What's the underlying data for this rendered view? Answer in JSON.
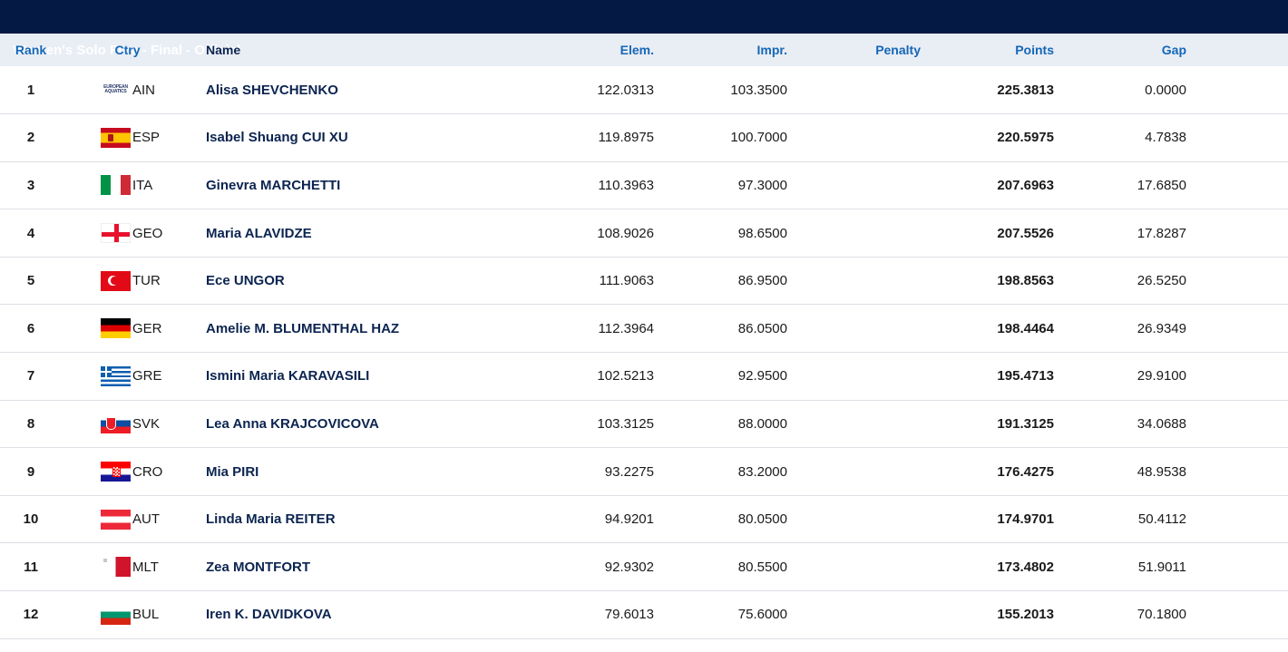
{
  "title": {
    "event": "Women's Solo Free - Final",
    "separator": " - ",
    "status": "Official"
  },
  "columns": {
    "rank": "Rank",
    "ctry": "Ctry",
    "name": "Name",
    "elem": "Elem.",
    "impr": "Impr.",
    "penalty": "Penalty",
    "points": "Points",
    "gap": "Gap"
  },
  "rows": [
    {
      "rank": "1",
      "ctry": "AIN",
      "flag": "ain",
      "flag_text": "EUROPEAN AQUATICS",
      "name": "Alisa SHEVCHENKO",
      "elem": "122.0313",
      "impr": "103.3500",
      "penalty": "",
      "points": "225.3813",
      "gap": "0.0000"
    },
    {
      "rank": "2",
      "ctry": "ESP",
      "flag": "esp",
      "name": "Isabel Shuang CUI XU",
      "elem": "119.8975",
      "impr": "100.7000",
      "penalty": "",
      "points": "220.5975",
      "gap": "4.7838"
    },
    {
      "rank": "3",
      "ctry": "ITA",
      "flag": "ita",
      "name": "Ginevra MARCHETTI",
      "elem": "110.3963",
      "impr": "97.3000",
      "penalty": "",
      "points": "207.6963",
      "gap": "17.6850"
    },
    {
      "rank": "4",
      "ctry": "GEO",
      "flag": "geo",
      "name": "Maria ALAVIDZE",
      "elem": "108.9026",
      "impr": "98.6500",
      "penalty": "",
      "points": "207.5526",
      "gap": "17.8287"
    },
    {
      "rank": "5",
      "ctry": "TUR",
      "flag": "tur",
      "name": "Ece UNGOR",
      "elem": "111.9063",
      "impr": "86.9500",
      "penalty": "",
      "points": "198.8563",
      "gap": "26.5250"
    },
    {
      "rank": "6",
      "ctry": "GER",
      "flag": "ger",
      "name": "Amelie M. BLUMENTHAL HAZ",
      "elem": "112.3964",
      "impr": "86.0500",
      "penalty": "",
      "points": "198.4464",
      "gap": "26.9349"
    },
    {
      "rank": "7",
      "ctry": "GRE",
      "flag": "gre",
      "name": "Ismini Maria KARAVASILI",
      "elem": "102.5213",
      "impr": "92.9500",
      "penalty": "",
      "points": "195.4713",
      "gap": "29.9100"
    },
    {
      "rank": "8",
      "ctry": "SVK",
      "flag": "svk",
      "name": "Lea Anna KRAJCOVICOVA",
      "elem": "103.3125",
      "impr": "88.0000",
      "penalty": "",
      "points": "191.3125",
      "gap": "34.0688"
    },
    {
      "rank": "9",
      "ctry": "CRO",
      "flag": "cro",
      "name": "Mia PIRI",
      "elem": "93.2275",
      "impr": "83.2000",
      "penalty": "",
      "points": "176.4275",
      "gap": "48.9538"
    },
    {
      "rank": "10",
      "ctry": "AUT",
      "flag": "aut",
      "name": "Linda Maria REITER",
      "elem": "94.9201",
      "impr": "80.0500",
      "penalty": "",
      "points": "174.9701",
      "gap": "50.4112"
    },
    {
      "rank": "11",
      "ctry": "MLT",
      "flag": "mlt",
      "name": "Zea MONTFORT",
      "elem": "92.9302",
      "impr": "80.5500",
      "penalty": "",
      "points": "173.4802",
      "gap": "51.9011"
    },
    {
      "rank": "12",
      "ctry": "BUL",
      "flag": "bul",
      "name": "Iren K. DAVIDKOVA",
      "elem": "79.6013",
      "impr": "75.6000",
      "penalty": "",
      "points": "155.2013",
      "gap": "70.1800"
    }
  ],
  "colors": {
    "title_bg": "#041a44",
    "header_bg": "#e9edf4",
    "header_text": "#1467b8",
    "name_text": "#0b2450"
  }
}
